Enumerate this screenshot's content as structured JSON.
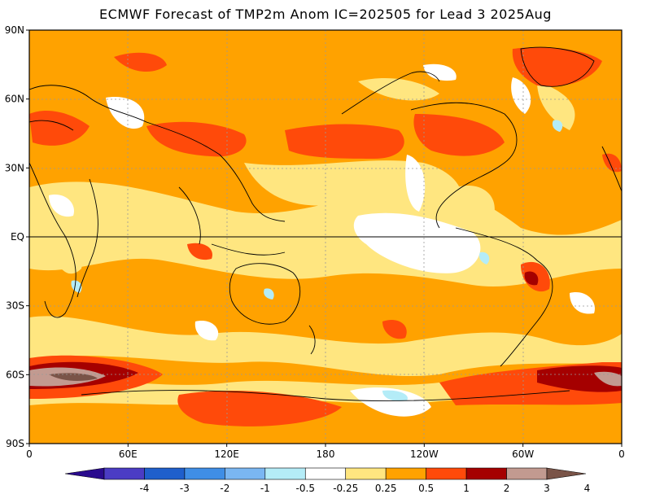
{
  "title": "ECMWF Forecast of TMP2m Anom IC=202505 for Lead 3 2025Aug",
  "axes": {
    "lat_labels": [
      "90N",
      "60N",
      "30N",
      "EQ",
      "30S",
      "60S",
      "90S"
    ],
    "lon_labels": [
      "0",
      "60E",
      "120E",
      "180",
      "120W",
      "60W",
      "0"
    ]
  },
  "colorbar": {
    "tick_labels": [
      "-4",
      "-3",
      "-2",
      "-1",
      "-0.5",
      "-0.25",
      "0.25",
      "0.5",
      "1",
      "2",
      "3",
      "4"
    ],
    "colors": [
      "#2a0b8e",
      "#4b3cc4",
      "#1f5fcc",
      "#3f8ee6",
      "#7ab6f2",
      "#b4ecf7",
      "#ffffff",
      "#ffe680",
      "#ffa200",
      "#ff4a0a",
      "#a50000",
      "#c29a90",
      "#7a5448"
    ]
  },
  "colors": {
    "background": "#ffffff",
    "ocean_base": "#ffa200",
    "frame": "#000000"
  }
}
